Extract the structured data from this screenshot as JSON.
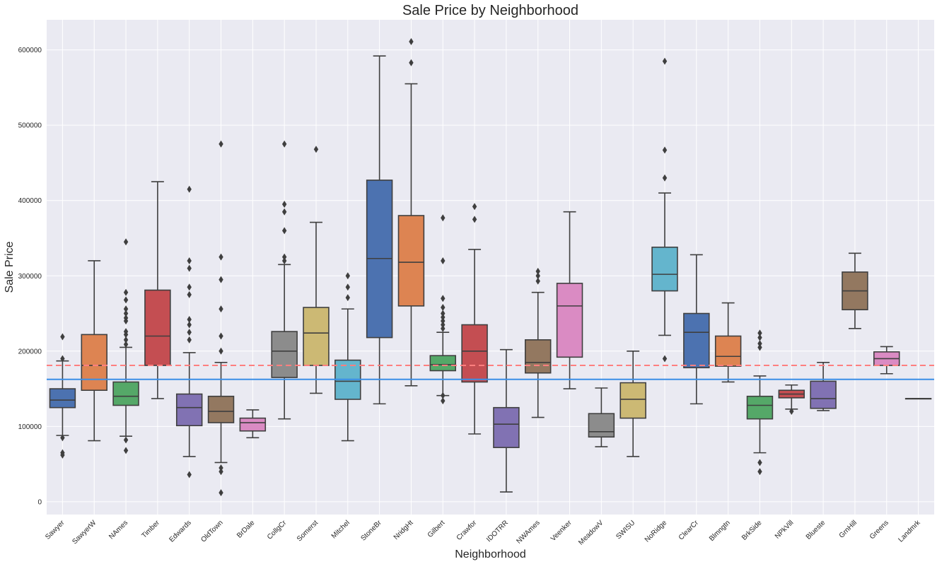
{
  "chart_data": {
    "type": "box",
    "title": "Sale Price by Neighborhood",
    "xlabel": "Neighborhood",
    "ylabel": "Sale Price",
    "ylim": [
      -17000,
      640000
    ],
    "yticks": [
      0,
      100000,
      200000,
      300000,
      400000,
      500000,
      600000
    ],
    "ytick_labels": [
      "0",
      "100000",
      "200000",
      "300000",
      "400000",
      "500000",
      "600000"
    ],
    "grid": true,
    "reference_lines": [
      {
        "value": 181000,
        "style": "dashed",
        "color": "#ff7f7f"
      },
      {
        "value": 162500,
        "style": "solid",
        "color": "#3a8ee6"
      }
    ],
    "boxes": [
      {
        "category": "Sawyer",
        "color": "#4c72b0",
        "whisker_low": 88000,
        "q1": 125000,
        "median": 135000,
        "q3": 150000,
        "whisker_high": 187000,
        "outliers": [
          219000,
          190000,
          85000,
          65000,
          62000
        ]
      },
      {
        "category": "SawyerW",
        "color": "#dd8452",
        "whisker_low": 81000,
        "q1": 148000,
        "median": 181000,
        "q3": 222000,
        "whisker_high": 320000,
        "outliers": []
      },
      {
        "category": "NAmes",
        "color": "#55a868",
        "whisker_low": 87000,
        "q1": 128000,
        "median": 140000,
        "q3": 159000,
        "whisker_high": 205000,
        "outliers": [
          345000,
          278000,
          268000,
          256000,
          250000,
          244000,
          240000,
          226000,
          222000,
          215000,
          209000,
          82000,
          68000
        ]
      },
      {
        "category": "Timber",
        "color": "#c44e52",
        "whisker_low": 137000,
        "q1": 181000,
        "median": 220000,
        "q3": 281000,
        "whisker_high": 425000,
        "outliers": []
      },
      {
        "category": "Edwards",
        "color": "#8172b3",
        "whisker_low": 60000,
        "q1": 101000,
        "median": 125000,
        "q3": 143000,
        "whisker_high": 198000,
        "outliers": [
          415000,
          320000,
          310000,
          285000,
          275000,
          242000,
          235000,
          225000,
          215000,
          36000
        ]
      },
      {
        "category": "OldTown",
        "color": "#937860",
        "whisker_low": 52000,
        "q1": 105000,
        "median": 120000,
        "q3": 140000,
        "whisker_high": 185000,
        "outliers": [
          475000,
          325000,
          295000,
          256000,
          220000,
          200000,
          45000,
          40000,
          12000
        ]
      },
      {
        "category": "BrDale",
        "color": "#da8bc3",
        "whisker_low": 85000,
        "q1": 94000,
        "median": 105000,
        "q3": 111000,
        "whisker_high": 122000,
        "outliers": []
      },
      {
        "category": "CollgCr",
        "color": "#8c8c8c",
        "whisker_low": 110000,
        "q1": 165000,
        "median": 200000,
        "q3": 226000,
        "whisker_high": 315000,
        "outliers": [
          475000,
          395000,
          385000,
          360000,
          325000,
          320000
        ]
      },
      {
        "category": "Somerst",
        "color": "#ccb974",
        "whisker_low": 144000,
        "q1": 181000,
        "median": 224000,
        "q3": 258000,
        "whisker_high": 371000,
        "outliers": [
          468000
        ]
      },
      {
        "category": "Mitchel",
        "color": "#64b5cd",
        "whisker_low": 81000,
        "q1": 136000,
        "median": 160000,
        "q3": 188000,
        "whisker_high": 256000,
        "outliers": [
          300000,
          285000,
          271000
        ]
      },
      {
        "category": "StoneBr",
        "color": "#4c72b0",
        "whisker_low": 130000,
        "q1": 218000,
        "median": 323000,
        "q3": 427000,
        "whisker_high": 592000,
        "outliers": []
      },
      {
        "category": "NridgHt",
        "color": "#dd8452",
        "whisker_low": 154000,
        "q1": 260000,
        "median": 318000,
        "q3": 380000,
        "whisker_high": 555000,
        "outliers": [
          611000,
          583000
        ]
      },
      {
        "category": "Gilbert",
        "color": "#55a868",
        "whisker_low": 141000,
        "q1": 174000,
        "median": 182000,
        "q3": 194000,
        "whisker_high": 225000,
        "outliers": [
          377000,
          320000,
          270000,
          258000,
          250000,
          245000,
          240000,
          235000,
          230000,
          141000,
          134000
        ]
      },
      {
        "category": "Crawfor",
        "color": "#c44e52",
        "whisker_low": 90000,
        "q1": 159000,
        "median": 200000,
        "q3": 235000,
        "whisker_high": 335000,
        "outliers": [
          392000,
          375000
        ]
      },
      {
        "category": "IDOTRR",
        "color": "#8172b3",
        "whisker_low": 13000,
        "q1": 72000,
        "median": 103000,
        "q3": 125000,
        "whisker_high": 202000,
        "outliers": []
      },
      {
        "category": "NWAmes",
        "color": "#937860",
        "whisker_low": 112000,
        "q1": 171000,
        "median": 185000,
        "q3": 215000,
        "whisker_high": 278000,
        "outliers": [
          306000,
          300000,
          293000
        ]
      },
      {
        "category": "Veenker",
        "color": "#da8bc3",
        "whisker_low": 150000,
        "q1": 192000,
        "median": 260000,
        "q3": 290000,
        "whisker_high": 385000,
        "outliers": []
      },
      {
        "category": "MeadowV",
        "color": "#8c8c8c",
        "whisker_low": 73000,
        "q1": 86000,
        "median": 93000,
        "q3": 117000,
        "whisker_high": 151000,
        "outliers": []
      },
      {
        "category": "SWISU",
        "color": "#ccb974",
        "whisker_low": 60000,
        "q1": 111000,
        "median": 136000,
        "q3": 158000,
        "whisker_high": 200000,
        "outliers": []
      },
      {
        "category": "NoRidge",
        "color": "#64b5cd",
        "whisker_low": 221000,
        "q1": 280000,
        "median": 302000,
        "q3": 338000,
        "whisker_high": 410000,
        "outliers": [
          585000,
          467000,
          430000,
          190000
        ]
      },
      {
        "category": "ClearCr",
        "color": "#4c72b0",
        "whisker_low": 130000,
        "q1": 178000,
        "median": 225000,
        "q3": 250000,
        "whisker_high": 328000,
        "outliers": []
      },
      {
        "category": "Blmngtn",
        "color": "#dd8452",
        "whisker_low": 159000,
        "q1": 180000,
        "median": 193000,
        "q3": 220000,
        "whisker_high": 264000,
        "outliers": []
      },
      {
        "category": "BrkSide",
        "color": "#55a868",
        "whisker_low": 65000,
        "q1": 110000,
        "median": 128000,
        "q3": 140000,
        "whisker_high": 167000,
        "outliers": [
          224000,
          218000,
          210000,
          205000,
          52000,
          40000
        ]
      },
      {
        "category": "NPkVill",
        "color": "#c44e52",
        "whisker_low": 123000,
        "q1": 138000,
        "median": 143000,
        "q3": 148000,
        "whisker_high": 155000,
        "outliers": [
          120000
        ]
      },
      {
        "category": "Blueste",
        "color": "#8172b3",
        "whisker_low": 121000,
        "q1": 124000,
        "median": 137000,
        "q3": 160000,
        "whisker_high": 185000,
        "outliers": []
      },
      {
        "category": "GrnHill",
        "color": "#937860",
        "whisker_low": 230000,
        "q1": 255000,
        "median": 280000,
        "q3": 305000,
        "whisker_high": 330000,
        "outliers": []
      },
      {
        "category": "Greens",
        "color": "#da8bc3",
        "whisker_low": 170000,
        "q1": 181000,
        "median": 190000,
        "q3": 199000,
        "whisker_high": 206000,
        "outliers": []
      },
      {
        "category": "Landmrk",
        "color": "#8c8c8c",
        "whisker_low": 137000,
        "q1": 137000,
        "median": 137000,
        "q3": 137000,
        "whisker_high": 137000,
        "outliers": []
      }
    ]
  }
}
